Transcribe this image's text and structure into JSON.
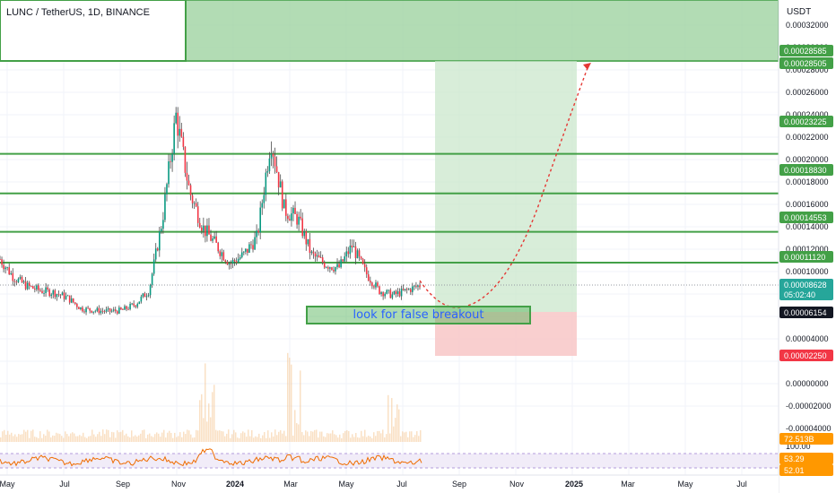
{
  "header": {
    "symbol": "LUNC / TetherUS, 1D, BINANCE",
    "currency": "USDT"
  },
  "annotation": {
    "note": "look for false breakout"
  },
  "colors": {
    "green": "#43a047",
    "red": "#f23645",
    "candle_up": "#089981",
    "candle_down": "#f23645",
    "accent_blue": "#2962ff"
  },
  "price_scale": {
    "ticks": [
      "0.00032000",
      "0.00030000",
      "0.00028000",
      "0.00026000",
      "0.00024000",
      "0.00022000",
      "0.00020000",
      "0.00018000",
      "0.00016000",
      "0.00014000",
      "0.00012000",
      "0.00010000",
      "0.00004000",
      "0.00000000",
      "-0.00002000",
      "-0.00004000",
      "100.00"
    ],
    "badges": [
      {
        "label": "0.00028585",
        "kind": "green"
      },
      {
        "label": "0.00028505",
        "kind": "green"
      },
      {
        "label": "0.00023225",
        "kind": "green"
      },
      {
        "label": "0.00018830",
        "kind": "green"
      },
      {
        "label": "0.00014553",
        "kind": "green"
      },
      {
        "label": "0.00011120",
        "kind": "green"
      },
      {
        "label": "0.00008628",
        "kind": "teal",
        "sub": "05:02:40"
      },
      {
        "label": "0.00006154",
        "kind": "dark"
      },
      {
        "label": "0.00002250",
        "kind": "red"
      },
      {
        "label": "72.513B",
        "kind": "orange"
      },
      {
        "label": "53.29",
        "kind": "orange"
      },
      {
        "label": "52.01",
        "kind": "orange"
      }
    ]
  },
  "time_axis": {
    "labels": [
      "May",
      "Jul",
      "Sep",
      "Nov",
      "2024",
      "Mar",
      "May",
      "Jul",
      "Sep",
      "Nov",
      "2025",
      "Mar",
      "May",
      "Jul"
    ]
  },
  "chart_data": {
    "type": "candlestick",
    "levels": [
      0.00028585,
      0.00028505,
      0.00023225,
      0.0001883,
      0.00014553,
      0.0001112
    ],
    "current_price": 8.628e-05,
    "countdown": "05:02:40",
    "target_price": 0.00028585,
    "entry_price": 6.154e-05,
    "stop_price": 2.25e-05,
    "volume": "72.513B",
    "rsi": [
      53.29,
      52.01
    ],
    "approx_price_path": [
      0.000115,
      9.5e-05,
      8.5e-05,
      8e-05,
      7.8e-05,
      7.2e-05,
      6e-05,
      5.8e-05,
      5.7e-05,
      5.8e-05,
      6.5e-05,
      8e-05,
      0.00016,
      0.000275,
      0.00019,
      0.00015,
      0.00013,
      0.00011,
      0.00012,
      0.00014,
      0.00025,
      0.00017,
      0.00016,
      0.00012,
      0.00011,
      0.000105,
      0.00013,
      0.0001,
      8e-05,
      7.5e-05,
      8e-05,
      8.6e-05
    ]
  }
}
